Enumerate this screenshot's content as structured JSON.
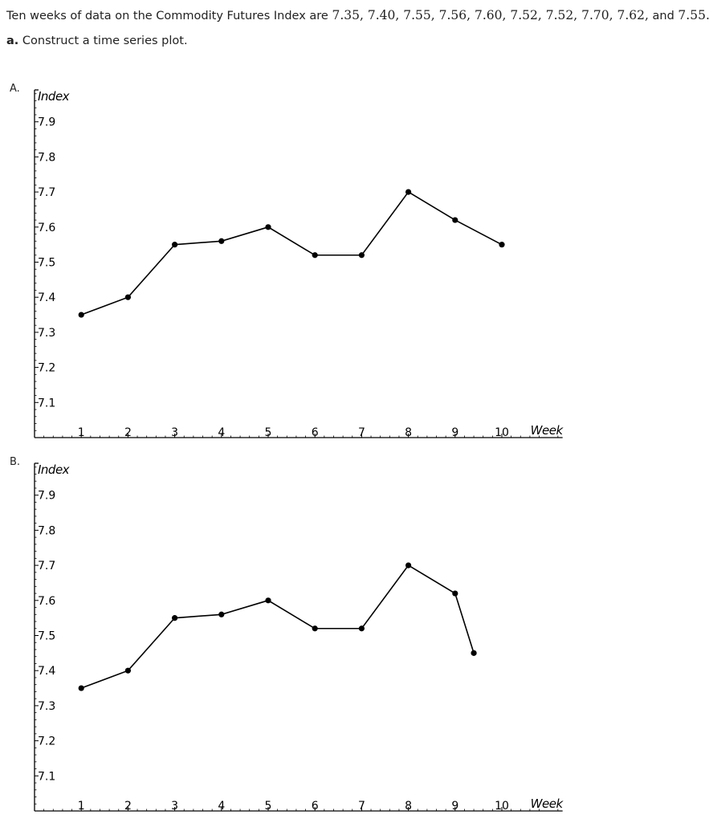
{
  "question": {
    "intro": "Ten weeks of data on the Commodity Futures Index are",
    "values_text": [
      "7.35",
      "7.40",
      "7.55",
      "7.56",
      "7.60",
      "7.52",
      "7.52",
      "7.70",
      "7.62"
    ],
    "last_value_text": "7.55",
    "and_word": "and",
    "part_letter": "a.",
    "part_text": "Construct a time series plot."
  },
  "options": [
    {
      "label": "A."
    },
    {
      "label": "B."
    }
  ],
  "chart_data": [
    {
      "type": "line",
      "xlabel": "Week",
      "ylabel": "Index",
      "x_ticks": [
        "1",
        "2",
        "3",
        "4",
        "5",
        "6",
        "7",
        "8",
        "9",
        "10"
      ],
      "y_ticks": [
        "7.1",
        "7.2",
        "7.3",
        "7.4",
        "7.5",
        "7.6",
        "7.7",
        "7.8",
        "7.9"
      ],
      "xlim": [
        0,
        11.3
      ],
      "ylim": [
        7.0,
        8.0
      ],
      "series": [
        {
          "x": [
            1,
            2,
            3,
            4,
            5,
            6,
            7,
            8,
            9,
            10
          ],
          "values": [
            7.35,
            7.4,
            7.55,
            7.56,
            7.6,
            7.52,
            7.52,
            7.7,
            7.62,
            7.55
          ]
        }
      ]
    },
    {
      "type": "line",
      "xlabel": "Week",
      "ylabel": "Index",
      "x_ticks": [
        "1",
        "2",
        "3",
        "4",
        "5",
        "6",
        "7",
        "8",
        "9",
        "10"
      ],
      "y_ticks": [
        "7.1",
        "7.2",
        "7.3",
        "7.4",
        "7.5",
        "7.6",
        "7.7",
        "7.8",
        "7.9"
      ],
      "xlim": [
        0,
        11.3
      ],
      "ylim": [
        7.0,
        8.0
      ],
      "series": [
        {
          "x": [
            1,
            2,
            3,
            4,
            5,
            6,
            7,
            8,
            9,
            9.4
          ],
          "values": [
            7.35,
            7.4,
            7.55,
            7.56,
            7.6,
            7.52,
            7.52,
            7.7,
            7.62,
            7.45
          ]
        }
      ]
    }
  ]
}
